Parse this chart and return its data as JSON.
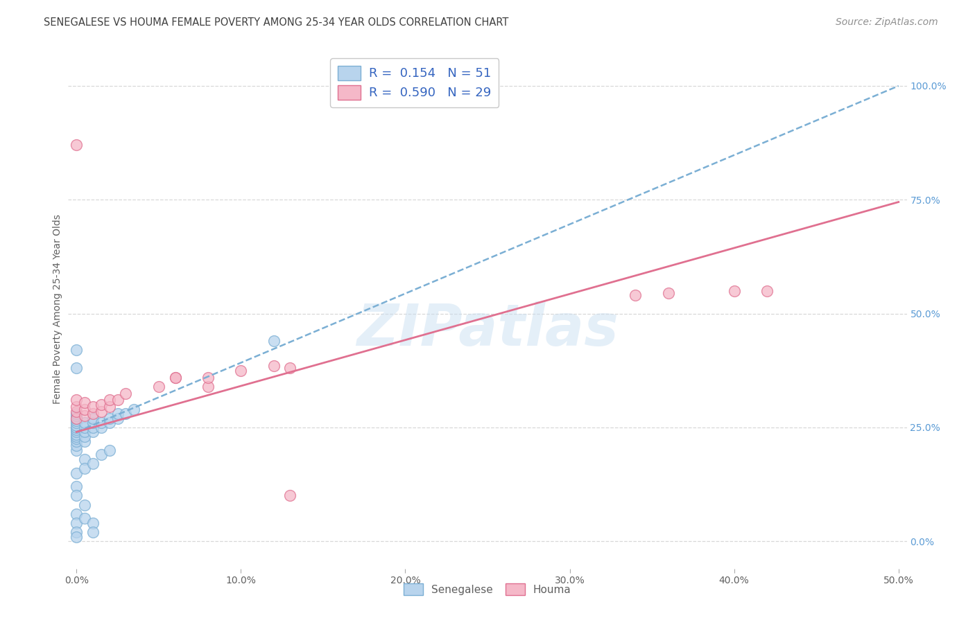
{
  "title": "SENEGALESE VS HOUMA FEMALE POVERTY AMONG 25-34 YEAR OLDS CORRELATION CHART",
  "source": "Source: ZipAtlas.com",
  "ylabel": "Female Poverty Among 25-34 Year Olds",
  "xlim": [
    -0.005,
    0.505
  ],
  "ylim": [
    -0.06,
    1.08
  ],
  "xticks": [
    0.0,
    0.1,
    0.2,
    0.3,
    0.4,
    0.5
  ],
  "xticklabels": [
    "0.0%",
    "10.0%",
    "20.0%",
    "30.0%",
    "40.0%",
    "50.0%"
  ],
  "yticks_right": [
    0.0,
    0.25,
    0.5,
    0.75,
    1.0
  ],
  "yticklabels_right": [
    "0.0%",
    "25.0%",
    "50.0%",
    "75.0%",
    "100.0%"
  ],
  "watermark": "ZIPatlas",
  "legend_R1": "0.154",
  "legend_N1": "51",
  "legend_R2": "0.590",
  "legend_N2": "29",
  "color_senegalese_fill": "#b8d4ed",
  "color_senegalese_edge": "#7bafd4",
  "color_houma_fill": "#f5b8c8",
  "color_houma_edge": "#e07090",
  "color_line_senegalese": "#7bafd4",
  "color_line_houma": "#e07090",
  "color_title": "#404040",
  "color_source": "#909090",
  "color_tick": "#606060",
  "color_right_tick": "#5b9bd5",
  "color_legend_text": "#3565c0",
  "background_color": "#ffffff",
  "grid_color": "#d8d8d8",
  "senegalese_x": [
    0.0,
    0.0,
    0.0,
    0.0,
    0.0,
    0.0,
    0.0,
    0.0,
    0.0,
    0.0,
    0.0,
    0.0,
    0.0,
    0.0,
    0.0,
    0.005,
    0.005,
    0.005,
    0.005,
    0.005,
    0.01,
    0.01,
    0.01,
    0.01,
    0.015,
    0.015,
    0.02,
    0.02,
    0.025,
    0.025,
    0.03,
    0.035,
    0.0,
    0.0,
    0.0,
    0.005,
    0.005,
    0.01,
    0.015,
    0.02,
    0.0,
    0.0,
    0.0,
    0.0,
    0.005,
    0.005,
    0.01,
    0.01,
    0.0,
    0.0,
    0.12
  ],
  "senegalese_y": [
    0.2,
    0.21,
    0.22,
    0.225,
    0.23,
    0.235,
    0.24,
    0.245,
    0.25,
    0.255,
    0.26,
    0.265,
    0.27,
    0.275,
    0.28,
    0.22,
    0.23,
    0.24,
    0.25,
    0.26,
    0.24,
    0.25,
    0.26,
    0.27,
    0.25,
    0.26,
    0.26,
    0.27,
    0.27,
    0.28,
    0.28,
    0.29,
    0.15,
    0.12,
    0.1,
    0.18,
    0.16,
    0.17,
    0.19,
    0.2,
    0.06,
    0.04,
    0.02,
    0.01,
    0.08,
    0.05,
    0.04,
    0.02,
    0.38,
    0.42,
    0.44
  ],
  "houma_x": [
    0.0,
    0.0,
    0.0,
    0.0,
    0.005,
    0.005,
    0.005,
    0.01,
    0.01,
    0.015,
    0.015,
    0.02,
    0.02,
    0.025,
    0.03,
    0.05,
    0.06,
    0.08,
    0.08,
    0.1,
    0.12,
    0.13,
    0.34,
    0.36,
    0.4,
    0.42,
    0.0,
    0.06,
    0.13
  ],
  "houma_y": [
    0.27,
    0.285,
    0.295,
    0.31,
    0.275,
    0.29,
    0.305,
    0.28,
    0.295,
    0.285,
    0.3,
    0.295,
    0.31,
    0.31,
    0.325,
    0.34,
    0.36,
    0.34,
    0.36,
    0.375,
    0.385,
    0.38,
    0.54,
    0.545,
    0.55,
    0.55,
    0.87,
    0.36,
    0.1
  ],
  "senegalese_line_x": [
    0.0,
    0.5
  ],
  "senegalese_line_y": [
    0.24,
    1.0
  ],
  "houma_line_x": [
    0.0,
    0.5
  ],
  "houma_line_y": [
    0.24,
    0.745
  ],
  "title_fontsize": 10.5,
  "source_fontsize": 10,
  "axis_label_fontsize": 10,
  "tick_fontsize": 10,
  "legend_fontsize": 13,
  "scatter_size": 130,
  "scatter_alpha": 0.75
}
